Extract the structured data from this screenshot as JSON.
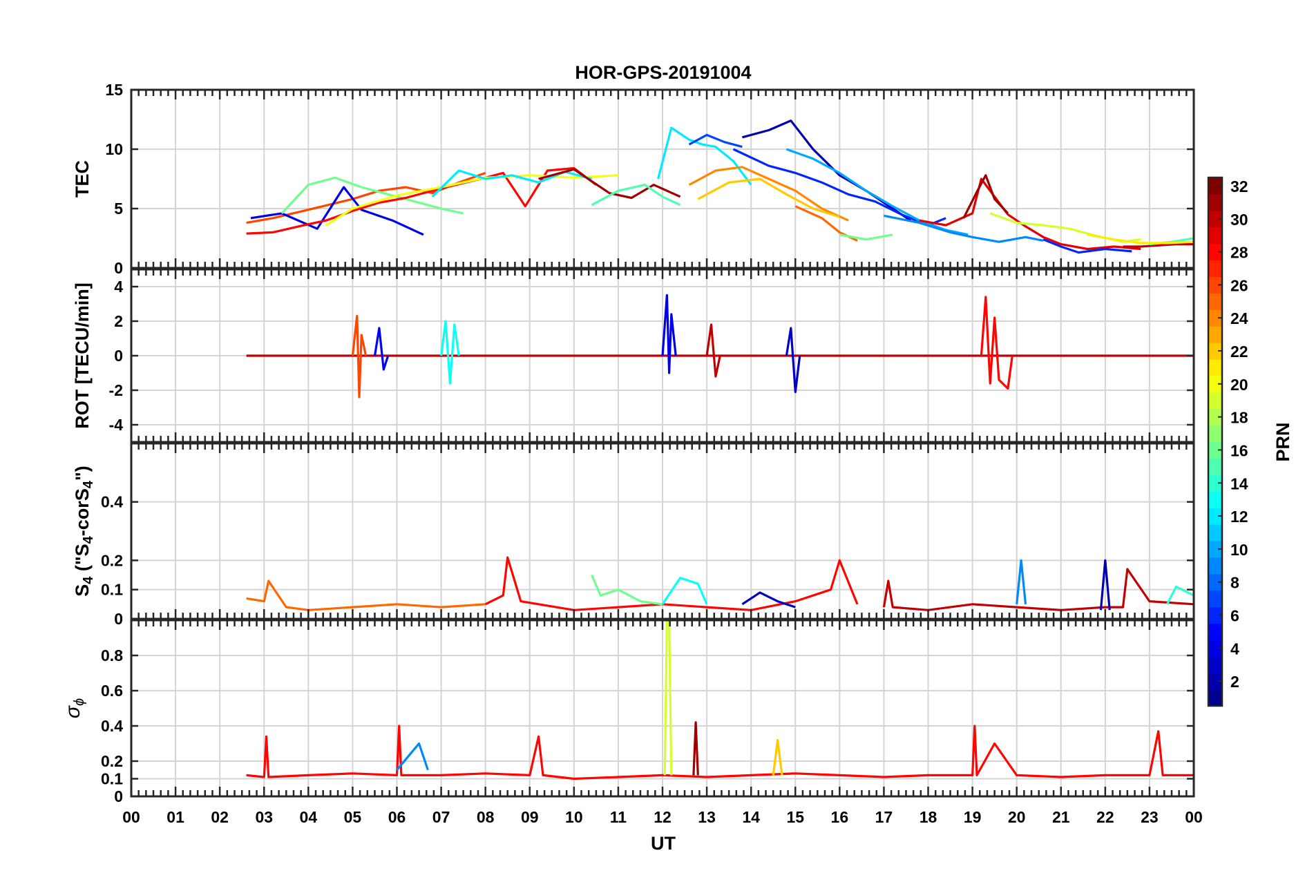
{
  "title": "HOR-GPS-20191004",
  "xlabel": "UT",
  "x_ticks": [
    "00",
    "01",
    "02",
    "03",
    "04",
    "05",
    "06",
    "07",
    "08",
    "09",
    "10",
    "11",
    "12",
    "13",
    "14",
    "15",
    "16",
    "17",
    "18",
    "19",
    "20",
    "21",
    "22",
    "23",
    "00"
  ],
  "colorbar": {
    "label": "PRN",
    "range": [
      1,
      32
    ],
    "ticks": [
      2,
      4,
      6,
      8,
      10,
      12,
      14,
      16,
      18,
      20,
      22,
      24,
      26,
      28,
      30,
      32
    ],
    "colormap": "jet",
    "colors": [
      "#00008f",
      "#0000ff",
      "#0080ff",
      "#00ffff",
      "#80ff80",
      "#ffff00",
      "#ff8000",
      "#ff0000",
      "#800000"
    ]
  },
  "chart_data": [
    {
      "type": "line",
      "panel": "tec",
      "ylabel": "TEC",
      "ylim": [
        0,
        15
      ],
      "y_ticks": [
        0,
        5,
        10,
        15
      ],
      "xlim": [
        0,
        24
      ],
      "grid": true,
      "series": [
        {
          "prn": 26,
          "x": [
            2.6,
            3.2,
            4.0,
            5.0,
            5.6,
            6.2,
            6.8,
            7.4,
            8.0
          ],
          "y": [
            3.8,
            4.2,
            4.9,
            5.8,
            6.5,
            6.8,
            6.3,
            7.2,
            8.0
          ]
        },
        {
          "prn": 4,
          "x": [
            2.7,
            3.4,
            4.2,
            4.8,
            5.2,
            5.9,
            6.6
          ],
          "y": [
            4.2,
            4.6,
            3.3,
            6.8,
            4.9,
            4.0,
            2.8
          ]
        },
        {
          "prn": 16,
          "x": [
            3.4,
            4.0,
            4.6,
            5.2,
            6.0,
            7.0,
            7.5
          ],
          "y": [
            4.6,
            7.0,
            7.6,
            6.8,
            6.0,
            5.0,
            4.6
          ]
        },
        {
          "prn": 28,
          "x": [
            2.6,
            3.2,
            3.9,
            4.4,
            5.0,
            5.6,
            6.2,
            7.0,
            8.0,
            8.4,
            8.9,
            9.4,
            10.0,
            10.5
          ],
          "y": [
            2.9,
            3.0,
            3.6,
            4.0,
            4.8,
            5.5,
            5.9,
            6.7,
            7.6,
            8.0,
            5.2,
            8.2,
            8.4,
            7.0
          ]
        },
        {
          "prn": 20,
          "x": [
            4.4,
            5.0,
            6.0,
            7.0,
            8.0,
            9.0,
            10.0,
            11.0
          ],
          "y": [
            3.6,
            5.0,
            6.1,
            6.8,
            7.6,
            7.8,
            7.6,
            7.8
          ]
        },
        {
          "prn": 12,
          "x": [
            6.8,
            7.4,
            8.0,
            8.6,
            9.2,
            9.8,
            10.4
          ],
          "y": [
            6.0,
            8.2,
            7.5,
            7.8,
            7.2,
            8.1,
            7.5
          ]
        },
        {
          "prn": 31,
          "x": [
            9.2,
            10.0,
            10.8,
            11.3,
            11.8,
            12.4
          ],
          "y": [
            7.5,
            8.3,
            6.3,
            5.9,
            7.0,
            6.0
          ]
        },
        {
          "prn": 15,
          "x": [
            10.4,
            11.0,
            11.6,
            12.0,
            12.4
          ],
          "y": [
            5.3,
            6.5,
            7.0,
            6.0,
            5.3
          ]
        },
        {
          "prn": 12,
          "x": [
            11.9,
            12.2,
            12.6,
            12.9,
            13.2,
            13.6,
            14.0
          ],
          "y": [
            7.5,
            11.8,
            10.8,
            10.4,
            10.2,
            9.0,
            7.0
          ]
        },
        {
          "prn": 7,
          "x": [
            12.6,
            13.0,
            13.4,
            13.8
          ],
          "y": [
            10.4,
            11.2,
            10.6,
            10.2
          ]
        },
        {
          "prn": 2,
          "x": [
            13.8,
            14.4,
            14.9,
            15.4,
            16.0,
            16.6,
            17.2,
            17.6
          ],
          "y": [
            11.0,
            11.6,
            12.4,
            10.0,
            7.8,
            6.5,
            5.0,
            4.0
          ]
        },
        {
          "prn": 6,
          "x": [
            13.6,
            14.4,
            15.0,
            15.6,
            16.2,
            16.8,
            17.4,
            18.0,
            18.4
          ],
          "y": [
            10.0,
            8.6,
            8.0,
            7.2,
            6.2,
            5.6,
            4.5,
            3.6,
            4.2
          ]
        },
        {
          "prn": 10,
          "x": [
            14.8,
            15.4,
            16.0,
            16.6,
            17.2,
            17.8,
            18.4,
            18.9
          ],
          "y": [
            10.0,
            9.2,
            8.0,
            6.5,
            5.2,
            4.0,
            3.2,
            2.8
          ]
        },
        {
          "prn": 24,
          "x": [
            12.6,
            13.2,
            13.8,
            14.4,
            15.0,
            15.6,
            16.2
          ],
          "y": [
            7.0,
            8.2,
            8.5,
            7.5,
            6.5,
            5.0,
            4.0
          ]
        },
        {
          "prn": 22,
          "x": [
            12.8,
            13.5,
            14.2,
            14.8,
            15.4,
            16.0
          ],
          "y": [
            5.8,
            7.2,
            7.5,
            6.2,
            5.0,
            4.3
          ]
        },
        {
          "prn": 25,
          "x": [
            15.0,
            15.6,
            16.0,
            16.4
          ],
          "y": [
            5.2,
            4.2,
            3.0,
            2.3
          ]
        },
        {
          "prn": 16,
          "x": [
            16.0,
            16.6,
            17.2
          ],
          "y": [
            2.8,
            2.4,
            2.8
          ]
        },
        {
          "prn": 9,
          "x": [
            17.0,
            17.8,
            18.5,
            19.0,
            19.6,
            20.2,
            20.6
          ],
          "y": [
            4.4,
            3.8,
            3.0,
            2.6,
            2.2,
            2.6,
            2.3
          ]
        },
        {
          "prn": 29,
          "x": [
            17.8,
            18.4,
            19.0,
            19.2,
            19.4,
            19.8,
            20.2,
            20.6,
            21.0,
            21.6,
            22.2,
            22.8
          ],
          "y": [
            4.0,
            3.6,
            4.6,
            7.5,
            6.5,
            4.5,
            3.5,
            2.6,
            2.0,
            1.6,
            1.8,
            1.6
          ]
        },
        {
          "prn": 31,
          "x": [
            18.8,
            19.1,
            19.3,
            19.5,
            19.8
          ],
          "y": [
            4.2,
            6.4,
            7.8,
            5.8,
            4.6
          ]
        },
        {
          "prn": 19,
          "x": [
            19.4,
            20.0,
            20.6,
            21.2,
            21.8,
            22.4,
            22.8
          ],
          "y": [
            4.6,
            3.8,
            3.6,
            3.3,
            2.7,
            2.2,
            2.4
          ]
        },
        {
          "prn": 6,
          "x": [
            20.6,
            21.0,
            21.4,
            22.0,
            22.6
          ],
          "y": [
            2.4,
            1.8,
            1.3,
            1.6,
            1.4
          ]
        },
        {
          "prn": 30,
          "x": [
            22.4,
            22.8,
            23.2,
            23.6,
            24.0
          ],
          "y": [
            1.8,
            1.8,
            1.9,
            2.0,
            2.0
          ]
        },
        {
          "prn": 15,
          "x": [
            23.0,
            23.5,
            24.0
          ],
          "y": [
            2.0,
            2.2,
            2.5
          ]
        },
        {
          "prn": 21,
          "x": [
            21.6,
            22.2,
            22.8,
            23.4,
            24.0
          ],
          "y": [
            2.8,
            2.4,
            2.1,
            2.1,
            2.2
          ]
        }
      ]
    },
    {
      "type": "line",
      "panel": "rot",
      "ylabel": "ROT [TECU/min]",
      "ylim": [
        -5,
        5
      ],
      "y_ticks": [
        -4,
        -2,
        0,
        2,
        4
      ],
      "xlim": [
        0,
        24
      ],
      "grid": true,
      "series": [
        {
          "prn": 30,
          "x": [
            2.6,
            24.0
          ],
          "y": [
            0.0,
            0.0
          ]
        },
        {
          "prn": 26,
          "x": [
            5.0,
            5.1,
            5.15,
            5.2,
            5.3
          ],
          "y": [
            0.0,
            2.3,
            -2.4,
            1.2,
            0.0
          ]
        },
        {
          "prn": 5,
          "x": [
            5.5,
            5.6,
            5.7,
            5.8
          ],
          "y": [
            0.0,
            1.6,
            -0.8,
            0.0
          ]
        },
        {
          "prn": 13,
          "x": [
            7.0,
            7.1,
            7.2,
            7.3,
            7.4
          ],
          "y": [
            0.0,
            2.0,
            -1.6,
            1.8,
            0.0
          ]
        },
        {
          "prn": 4,
          "x": [
            12.0,
            12.1,
            12.15,
            12.2,
            12.3
          ],
          "y": [
            0.0,
            3.5,
            -1.0,
            2.4,
            0.0
          ]
        },
        {
          "prn": 30,
          "x": [
            13.0,
            13.1,
            13.2,
            13.3
          ],
          "y": [
            0.0,
            1.8,
            -1.2,
            0.0
          ]
        },
        {
          "prn": 3,
          "x": [
            14.8,
            14.9,
            15.0,
            15.1
          ],
          "y": [
            0.0,
            1.6,
            -2.1,
            0.0
          ]
        },
        {
          "prn": 28,
          "x": [
            19.2,
            19.3,
            19.4,
            19.5,
            19.6,
            19.8,
            19.9
          ],
          "y": [
            0.0,
            3.4,
            -1.6,
            2.2,
            -1.4,
            -1.9,
            0.0
          ]
        }
      ]
    },
    {
      "type": "line",
      "panel": "s4",
      "ylabel_parts": [
        "S",
        "4",
        " (\"S",
        "4",
        "-corS",
        "4",
        "\")"
      ],
      "ylim": [
        0,
        0.6
      ],
      "y_ticks": [
        0,
        0.1,
        0.2,
        0.4
      ],
      "xlim": [
        0,
        24
      ],
      "grid": true,
      "series": [
        {
          "prn": 25,
          "x": [
            2.6,
            3.0,
            3.1,
            3.5,
            4.0,
            5.0,
            6.0,
            7.0,
            8.0
          ],
          "y": [
            0.07,
            0.06,
            0.13,
            0.04,
            0.03,
            0.04,
            0.05,
            0.04,
            0.05
          ]
        },
        {
          "prn": 28,
          "x": [
            8.0,
            8.4,
            8.5,
            8.8,
            9.2,
            10.0,
            11.0,
            12.0,
            13.0,
            14.0,
            15.0,
            15.8,
            16.0,
            16.4
          ],
          "y": [
            0.05,
            0.08,
            0.21,
            0.06,
            0.05,
            0.03,
            0.04,
            0.05,
            0.04,
            0.03,
            0.06,
            0.1,
            0.2,
            0.05
          ]
        },
        {
          "prn": 16,
          "x": [
            10.4,
            10.6,
            11.0,
            11.5,
            12.0
          ],
          "y": [
            0.15,
            0.08,
            0.1,
            0.06,
            0.05
          ]
        },
        {
          "prn": 13,
          "x": [
            12.0,
            12.4,
            12.8,
            13.0
          ],
          "y": [
            0.05,
            0.14,
            0.12,
            0.05
          ]
        },
        {
          "prn": 3,
          "x": [
            13.8,
            14.2,
            14.6,
            15.0
          ],
          "y": [
            0.05,
            0.09,
            0.06,
            0.04
          ]
        },
        {
          "prn": 30,
          "x": [
            17.0,
            17.1,
            17.2,
            18.0,
            19.0,
            20.0,
            21.0,
            22.0,
            22.4,
            22.5,
            23.0,
            24.0
          ],
          "y": [
            0.04,
            0.13,
            0.04,
            0.03,
            0.05,
            0.04,
            0.03,
            0.04,
            0.04,
            0.17,
            0.06,
            0.05
          ]
        },
        {
          "prn": 9,
          "x": [
            20.0,
            20.1,
            20.2
          ],
          "y": [
            0.05,
            0.2,
            0.05
          ]
        },
        {
          "prn": 2,
          "x": [
            21.9,
            22.0,
            22.1
          ],
          "y": [
            0.03,
            0.2,
            0.03
          ]
        },
        {
          "prn": 14,
          "x": [
            23.4,
            23.6,
            24.0
          ],
          "y": [
            0.05,
            0.11,
            0.08
          ]
        }
      ]
    },
    {
      "type": "line",
      "panel": "sigma_phi",
      "ylabel_parts": [
        "σ",
        "ϕ"
      ],
      "ylim": [
        0,
        1.0
      ],
      "y_ticks": [
        0,
        0.1,
        0.2,
        0.4,
        0.6,
        0.8
      ],
      "xlim": [
        0,
        24
      ],
      "grid": true,
      "series": [
        {
          "prn": 28,
          "x": [
            2.6,
            3.0,
            3.05,
            3.1,
            4.0,
            5.0,
            6.0,
            6.05,
            6.1,
            7.0,
            8.0,
            9.0,
            9.2,
            9.3,
            10.0,
            11.0,
            12.0,
            13.0,
            14.0,
            15.0,
            16.0,
            17.0,
            18.0,
            19.0,
            19.05,
            19.1,
            19.5,
            20.0,
            21.0,
            22.0,
            23.0,
            23.2,
            23.3,
            24.0
          ],
          "y": [
            0.12,
            0.11,
            0.34,
            0.11,
            0.12,
            0.13,
            0.12,
            0.4,
            0.12,
            0.12,
            0.13,
            0.12,
            0.34,
            0.12,
            0.1,
            0.11,
            0.12,
            0.11,
            0.12,
            0.13,
            0.12,
            0.11,
            0.12,
            0.12,
            0.4,
            0.12,
            0.3,
            0.12,
            0.11,
            0.12,
            0.12,
            0.37,
            0.12,
            0.12
          ]
        },
        {
          "prn": 19,
          "x": [
            12.05,
            12.1,
            12.15,
            12.2
          ],
          "y": [
            0.12,
            1.0,
            1.0,
            0.12
          ]
        },
        {
          "prn": 31,
          "x": [
            12.7,
            12.75,
            12.8
          ],
          "y": [
            0.12,
            0.42,
            0.12
          ]
        },
        {
          "prn": 9,
          "x": [
            6.0,
            6.3,
            6.5,
            6.7
          ],
          "y": [
            0.15,
            0.24,
            0.3,
            0.15
          ]
        },
        {
          "prn": 22,
          "x": [
            14.5,
            14.6,
            14.7
          ],
          "y": [
            0.12,
            0.32,
            0.12
          ]
        }
      ]
    }
  ]
}
